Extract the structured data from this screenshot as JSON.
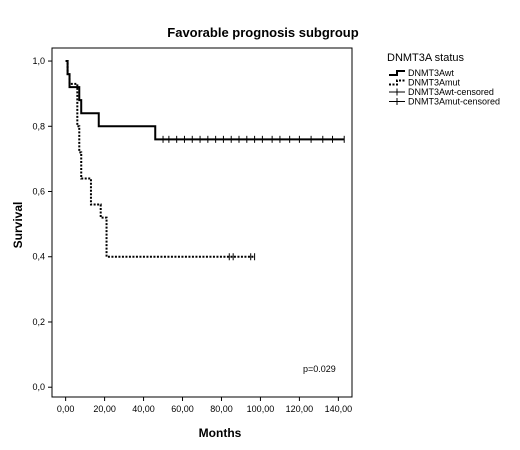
{
  "chart_data": {
    "type": "line",
    "step": true,
    "title": "Favorable prognosis subgroup",
    "xlabel": "Months",
    "ylabel": "Survival",
    "xlim": [
      -7,
      147
    ],
    "ylim": [
      -0.03,
      1.04
    ],
    "x_ticks": [
      {
        "value": 0,
        "label": "0,00"
      },
      {
        "value": 20,
        "label": "20,00"
      },
      {
        "value": 40,
        "label": "40,00"
      },
      {
        "value": 60,
        "label": "60,00"
      },
      {
        "value": 80,
        "label": "80,00"
      },
      {
        "value": 100,
        "label": "100,00"
      },
      {
        "value": 120,
        "label": "120,00"
      },
      {
        "value": 140,
        "label": "140,00"
      }
    ],
    "y_ticks": [
      {
        "value": 0.0,
        "label": "0,0"
      },
      {
        "value": 0.2,
        "label": "0,2"
      },
      {
        "value": 0.4,
        "label": "0,4"
      },
      {
        "value": 0.6,
        "label": "0,6"
      },
      {
        "value": 0.8,
        "label": "0,8"
      },
      {
        "value": 1.0,
        "label": "1,0"
      }
    ],
    "grid": false,
    "legend": {
      "title": "DNMT3A status",
      "position": "top-right",
      "entries": [
        "DNMT3Awt",
        "DNMT3Amut",
        "DNMT3Awt-censored",
        "DNMT3Amut-censored"
      ]
    },
    "annotation": "p=0.029",
    "series": [
      {
        "name": "DNMT3Awt",
        "style": "solid",
        "color": "#000000",
        "x": [
          0,
          1,
          2,
          7,
          8,
          17,
          46,
          143
        ],
        "y": [
          1.0,
          0.96,
          0.92,
          0.88,
          0.84,
          0.8,
          0.76,
          0.76
        ],
        "censored_x": [
          50,
          53,
          57,
          61,
          65,
          69,
          73,
          77,
          81,
          85,
          89,
          93,
          97,
          101,
          106,
          110,
          115,
          120,
          126,
          132,
          137,
          143
        ]
      },
      {
        "name": "DNMT3Amut",
        "style": "dotted",
        "color": "#000000",
        "x": [
          0,
          1,
          2,
          6,
          7,
          8,
          13,
          18,
          21,
          97
        ],
        "y": [
          1.0,
          0.96,
          0.93,
          0.8,
          0.72,
          0.64,
          0.56,
          0.52,
          0.4,
          0.4
        ],
        "censored_x": [
          84,
          86,
          95,
          97
        ]
      }
    ]
  }
}
